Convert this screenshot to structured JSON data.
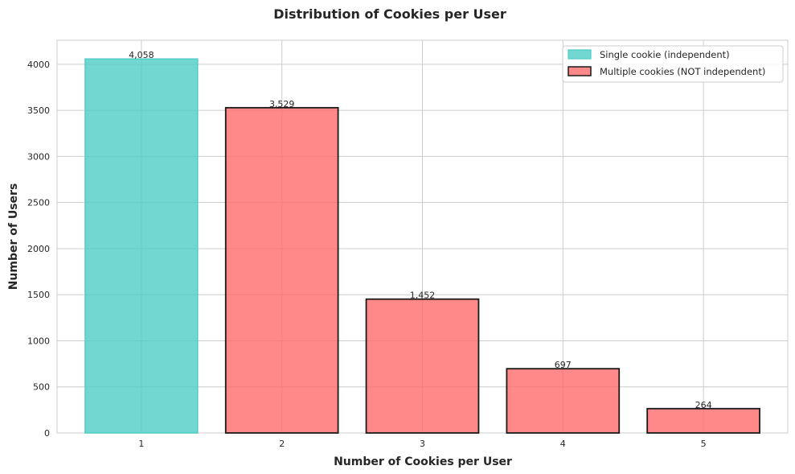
{
  "chart_data": {
    "type": "bar",
    "title": "Distribution of Cookies per User",
    "xlabel": "Number of Cookies per User",
    "ylabel": "Number of Users",
    "categories": [
      "1",
      "2",
      "3",
      "4",
      "5"
    ],
    "values": [
      4058,
      3529,
      1452,
      697,
      264
    ],
    "data_labels": [
      "4,058",
      "3,529",
      "1,452",
      "697",
      "264"
    ],
    "bar_group": [
      "single",
      "multiple",
      "multiple",
      "multiple",
      "multiple"
    ],
    "yticks": [
      0,
      500,
      1000,
      1500,
      2000,
      2500,
      3000,
      3500,
      4000
    ],
    "ylim": [
      0,
      4261
    ],
    "grid": true,
    "legend_position": "top-right",
    "legend": [
      {
        "key": "single",
        "label": "Single cookie (independent)",
        "color": "#4ecdc4",
        "edge": "#4ecdc4"
      },
      {
        "key": "multiple",
        "label": "Multiple cookies (NOT independent)",
        "color": "#ff6b6b",
        "edge": "#1a1a1a"
      }
    ]
  }
}
